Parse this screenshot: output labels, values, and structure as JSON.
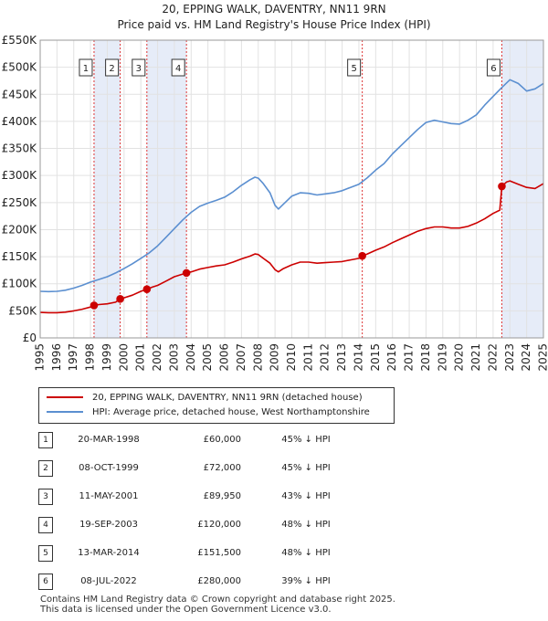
{
  "chart_data": {
    "type": "line",
    "title": "20, EPPING WALK, DAVENTRY, NN11 9RN",
    "subtitle": "Price paid vs. HM Land Registry's House Price Index (HPI)",
    "xlim": [
      1995,
      2025
    ],
    "ylim": [
      0,
      550000
    ],
    "x_ticks": [
      "1995",
      "1996",
      "1997",
      "1998",
      "1999",
      "2000",
      "2001",
      "2002",
      "2003",
      "2004",
      "2005",
      "2006",
      "2007",
      "2008",
      "2009",
      "2010",
      "2011",
      "2012",
      "2013",
      "2014",
      "2015",
      "2016",
      "2017",
      "2018",
      "2019",
      "2020",
      "2021",
      "2022",
      "2023",
      "2024",
      "2025"
    ],
    "y_ticks": [
      {
        "value": 0,
        "label": "£0"
      },
      {
        "value": 50000,
        "label": "£50K"
      },
      {
        "value": 100000,
        "label": "£100K"
      },
      {
        "value": 150000,
        "label": "£150K"
      },
      {
        "value": 200000,
        "label": "£200K"
      },
      {
        "value": 250000,
        "label": "£250K"
      },
      {
        "value": 300000,
        "label": "£300K"
      },
      {
        "value": 350000,
        "label": "£350K"
      },
      {
        "value": 400000,
        "label": "£400K"
      },
      {
        "value": 450000,
        "label": "£450K"
      },
      {
        "value": 500000,
        "label": "£500K"
      },
      {
        "value": 550000,
        "label": "£550K"
      }
    ],
    "shaded_periods": [
      [
        1998.21,
        1999.77
      ],
      [
        2001.36,
        2003.72
      ],
      [
        2022.52,
        2025.0
      ]
    ],
    "series": [
      {
        "name": "20, EPPING WALK, DAVENTRY, NN11 9RN (detached house)",
        "color": "#cc0000",
        "points": [
          [
            1995.0,
            47000
          ],
          [
            1995.5,
            46500
          ],
          [
            1996.0,
            46500
          ],
          [
            1996.5,
            47500
          ],
          [
            1997.0,
            50000
          ],
          [
            1997.5,
            53000
          ],
          [
            1998.0,
            57000
          ],
          [
            1998.21,
            60000
          ],
          [
            1998.5,
            61500
          ],
          [
            1999.0,
            63000
          ],
          [
            1999.5,
            66000
          ],
          [
            1999.77,
            72000
          ],
          [
            2000.0,
            74000
          ],
          [
            2000.5,
            79000
          ],
          [
            2001.0,
            86000
          ],
          [
            2001.36,
            89950
          ],
          [
            2001.7,
            94000
          ],
          [
            2002.0,
            97000
          ],
          [
            2002.5,
            105000
          ],
          [
            2003.0,
            113000
          ],
          [
            2003.5,
            118000
          ],
          [
            2003.72,
            120000
          ],
          [
            2004.0,
            122000
          ],
          [
            2004.5,
            127000
          ],
          [
            2005.0,
            130000
          ],
          [
            2005.5,
            133000
          ],
          [
            2006.0,
            135000
          ],
          [
            2006.5,
            140000
          ],
          [
            2007.0,
            146000
          ],
          [
            2007.5,
            151000
          ],
          [
            2007.8,
            155000
          ],
          [
            2008.0,
            154000
          ],
          [
            2008.3,
            147000
          ],
          [
            2008.7,
            138000
          ],
          [
            2009.0,
            126000
          ],
          [
            2009.2,
            122000
          ],
          [
            2009.5,
            128000
          ],
          [
            2010.0,
            135000
          ],
          [
            2010.5,
            140000
          ],
          [
            2011.0,
            140000
          ],
          [
            2011.5,
            138000
          ],
          [
            2012.0,
            139000
          ],
          [
            2012.5,
            140000
          ],
          [
            2013.0,
            141000
          ],
          [
            2013.5,
            144000
          ],
          [
            2014.0,
            147000
          ],
          [
            2014.2,
            151500
          ],
          [
            2014.5,
            155000
          ],
          [
            2015.0,
            162000
          ],
          [
            2015.5,
            168000
          ],
          [
            2016.0,
            176000
          ],
          [
            2016.5,
            183000
          ],
          [
            2017.0,
            190000
          ],
          [
            2017.5,
            197000
          ],
          [
            2018.0,
            202000
          ],
          [
            2018.5,
            205000
          ],
          [
            2019.0,
            205000
          ],
          [
            2019.5,
            203000
          ],
          [
            2020.0,
            203000
          ],
          [
            2020.5,
            206000
          ],
          [
            2021.0,
            212000
          ],
          [
            2021.5,
            220000
          ],
          [
            2022.0,
            230000
          ],
          [
            2022.4,
            236000
          ],
          [
            2022.52,
            280000
          ],
          [
            2022.8,
            288000
          ],
          [
            2023.0,
            290000
          ],
          [
            2023.5,
            284000
          ],
          [
            2024.0,
            278000
          ],
          [
            2024.5,
            276000
          ],
          [
            2025.0,
            285000
          ]
        ]
      },
      {
        "name": "HPI: Average price, detached house, West Northamptonshire",
        "color": "#5b8fd0",
        "points": [
          [
            1995.0,
            86000
          ],
          [
            1995.5,
            85500
          ],
          [
            1996.0,
            86000
          ],
          [
            1996.5,
            88000
          ],
          [
            1997.0,
            92000
          ],
          [
            1997.5,
            97000
          ],
          [
            1998.0,
            103000
          ],
          [
            1998.5,
            108000
          ],
          [
            1999.0,
            113000
          ],
          [
            1999.5,
            120000
          ],
          [
            2000.0,
            128000
          ],
          [
            2000.5,
            137000
          ],
          [
            2001.0,
            147000
          ],
          [
            2001.5,
            157000
          ],
          [
            2002.0,
            170000
          ],
          [
            2002.5,
            186000
          ],
          [
            2003.0,
            202000
          ],
          [
            2003.5,
            218000
          ],
          [
            2004.0,
            232000
          ],
          [
            2004.5,
            243000
          ],
          [
            2005.0,
            249000
          ],
          [
            2005.5,
            254000
          ],
          [
            2006.0,
            260000
          ],
          [
            2006.5,
            270000
          ],
          [
            2007.0,
            282000
          ],
          [
            2007.5,
            292000
          ],
          [
            2007.8,
            297000
          ],
          [
            2008.0,
            295000
          ],
          [
            2008.3,
            285000
          ],
          [
            2008.7,
            268000
          ],
          [
            2009.0,
            245000
          ],
          [
            2009.2,
            238000
          ],
          [
            2009.5,
            247000
          ],
          [
            2010.0,
            262000
          ],
          [
            2010.5,
            268000
          ],
          [
            2011.0,
            267000
          ],
          [
            2011.5,
            264000
          ],
          [
            2012.0,
            266000
          ],
          [
            2012.5,
            268000
          ],
          [
            2013.0,
            272000
          ],
          [
            2013.5,
            278000
          ],
          [
            2014.0,
            284000
          ],
          [
            2014.5,
            296000
          ],
          [
            2015.0,
            310000
          ],
          [
            2015.5,
            322000
          ],
          [
            2016.0,
            340000
          ],
          [
            2016.5,
            355000
          ],
          [
            2017.0,
            370000
          ],
          [
            2017.5,
            385000
          ],
          [
            2018.0,
            398000
          ],
          [
            2018.5,
            402000
          ],
          [
            2019.0,
            399000
          ],
          [
            2019.5,
            396000
          ],
          [
            2020.0,
            395000
          ],
          [
            2020.5,
            402000
          ],
          [
            2021.0,
            412000
          ],
          [
            2021.5,
            430000
          ],
          [
            2022.0,
            446000
          ],
          [
            2022.5,
            462000
          ],
          [
            2023.0,
            477000
          ],
          [
            2023.5,
            470000
          ],
          [
            2024.0,
            456000
          ],
          [
            2024.5,
            460000
          ],
          [
            2025.0,
            470000
          ]
        ]
      }
    ],
    "sales": [
      {
        "id": "1",
        "x": 1998.21,
        "price": 60000
      },
      {
        "id": "2",
        "x": 1999.77,
        "price": 72000
      },
      {
        "id": "3",
        "x": 2001.36,
        "price": 89950
      },
      {
        "id": "4",
        "x": 2003.72,
        "price": 120000
      },
      {
        "id": "5",
        "x": 2014.2,
        "price": 151500
      },
      {
        "id": "6",
        "x": 2022.52,
        "price": 280000
      }
    ]
  },
  "legend": {
    "property_label": "20, EPPING WALK, DAVENTRY, NN11 9RN (detached house)",
    "hpi_label": "HPI: Average price, detached house, West Northamptonshire"
  },
  "sales_table": [
    {
      "num": "1",
      "date": "20-MAR-1998",
      "price": "£60,000",
      "hpi": "45% ↓ HPI"
    },
    {
      "num": "2",
      "date": "08-OCT-1999",
      "price": "£72,000",
      "hpi": "45% ↓ HPI"
    },
    {
      "num": "3",
      "date": "11-MAY-2001",
      "price": "£89,950",
      "hpi": "43% ↓ HPI"
    },
    {
      "num": "4",
      "date": "19-SEP-2003",
      "price": "£120,000",
      "hpi": "48% ↓ HPI"
    },
    {
      "num": "5",
      "date": "13-MAR-2014",
      "price": "£151,500",
      "hpi": "48% ↓ HPI"
    },
    {
      "num": "6",
      "date": "08-JUL-2022",
      "price": "£280,000",
      "hpi": "39% ↓ HPI"
    }
  ],
  "footer": {
    "line1": "Contains HM Land Registry data © Crown copyright and database right 2025.",
    "line2": "This data is licensed under the Open Government Licence v3.0."
  }
}
